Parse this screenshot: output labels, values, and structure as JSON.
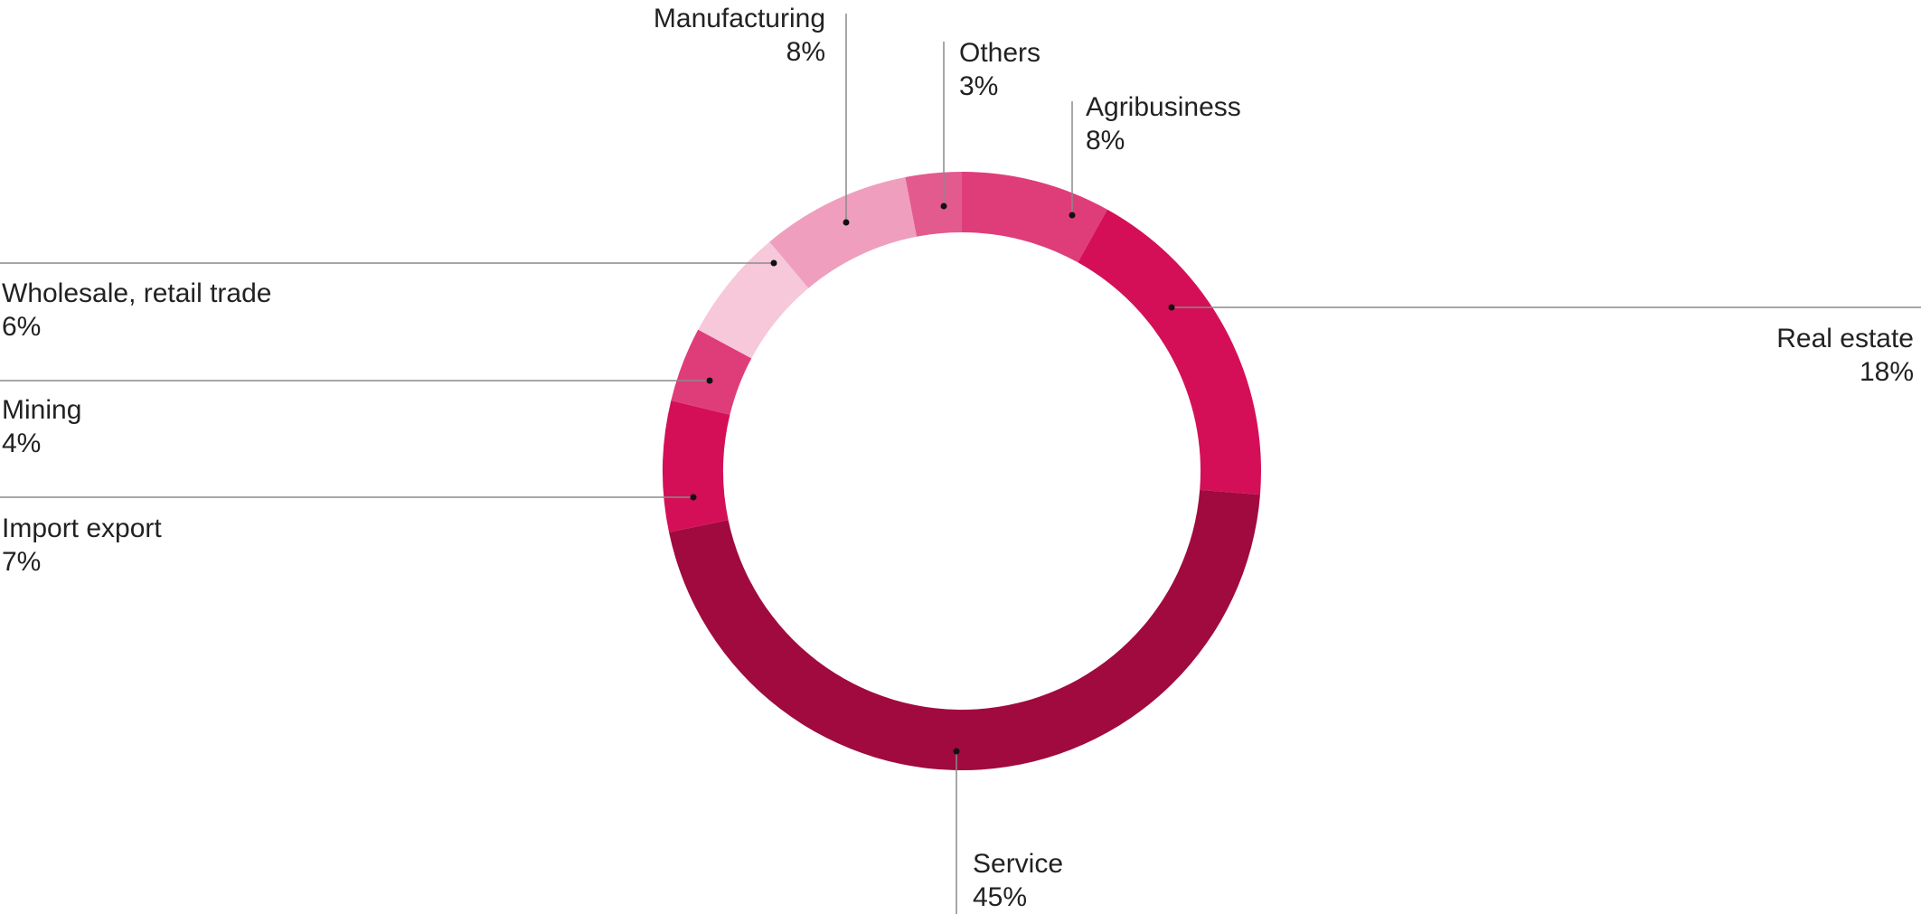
{
  "chart_data": {
    "type": "pie",
    "style": "donut",
    "title": "",
    "slices": [
      {
        "name": "Agribusiness",
        "value": 8,
        "label": "8%",
        "color": "#df3d79"
      },
      {
        "name": "Real estate",
        "value": 18,
        "label": "18%",
        "color": "#d50f57"
      },
      {
        "name": "Service",
        "value": 45,
        "label": "45%",
        "color": "#a00a3f"
      },
      {
        "name": "Import export",
        "value": 7,
        "label": "7%",
        "color": "#d50f57"
      },
      {
        "name": "Mining",
        "value": 4,
        "label": "4%",
        "color": "#df3d79"
      },
      {
        "name": "Wholesale, retail trade",
        "value": 6,
        "label": "6%",
        "color": "#f6c8d9"
      },
      {
        "name": "Manufacturing",
        "value": 8,
        "label": "8%",
        "color": "#ef9fbd"
      },
      {
        "name": "Others",
        "value": 3,
        "label": "3%",
        "color": "#e35a8f"
      }
    ],
    "start": "top",
    "direction": "clockwise",
    "legend": "none"
  }
}
